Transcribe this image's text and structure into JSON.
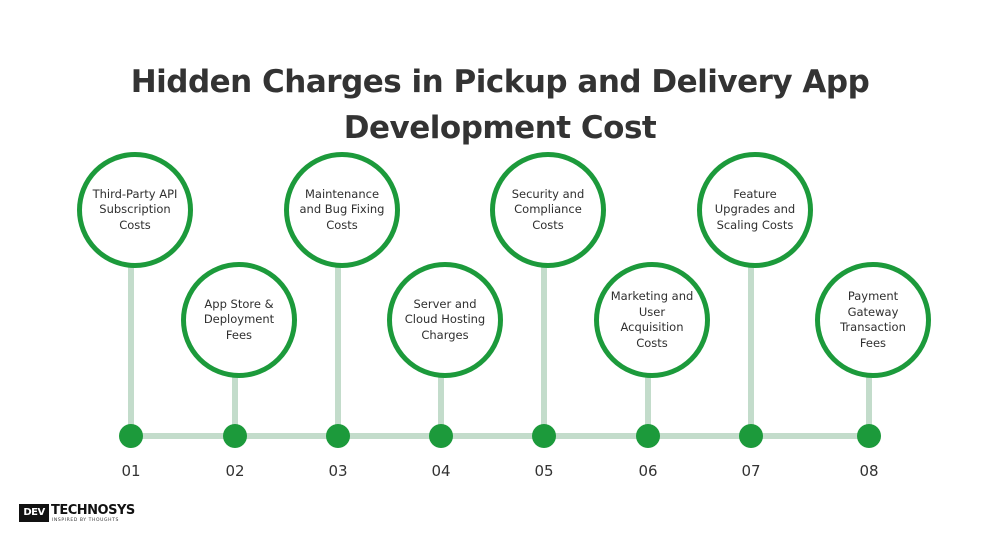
{
  "title": {
    "line1": "Hidden Charges in  Pickup and Delivery App",
    "line2": "Development Cost"
  },
  "steps": [
    {
      "number": "01",
      "label": "Third-Party API Subscription Costs"
    },
    {
      "number": "02",
      "label": "App Store & Deployment Fees"
    },
    {
      "number": "03",
      "label": "Maintenance and Bug Fixing Costs"
    },
    {
      "number": "04",
      "label": "Server and Cloud Hosting Charges"
    },
    {
      "number": "05",
      "label": "Security and Compliance Costs"
    },
    {
      "number": "06",
      "label": "Marketing and User Acquisition Costs"
    },
    {
      "number": "07",
      "label": "Feature Upgrades and Scaling Costs"
    },
    {
      "number": "08",
      "label": "Payment Gateway Transaction Fees"
    }
  ],
  "logo": {
    "mark": "DEV",
    "name": "TECHNOSYS",
    "tagline": "INSPIRED BY THOUGHTS"
  },
  "colors": {
    "accent": "#1c9a3b",
    "connector": "#c3dccb",
    "text": "#333333"
  }
}
